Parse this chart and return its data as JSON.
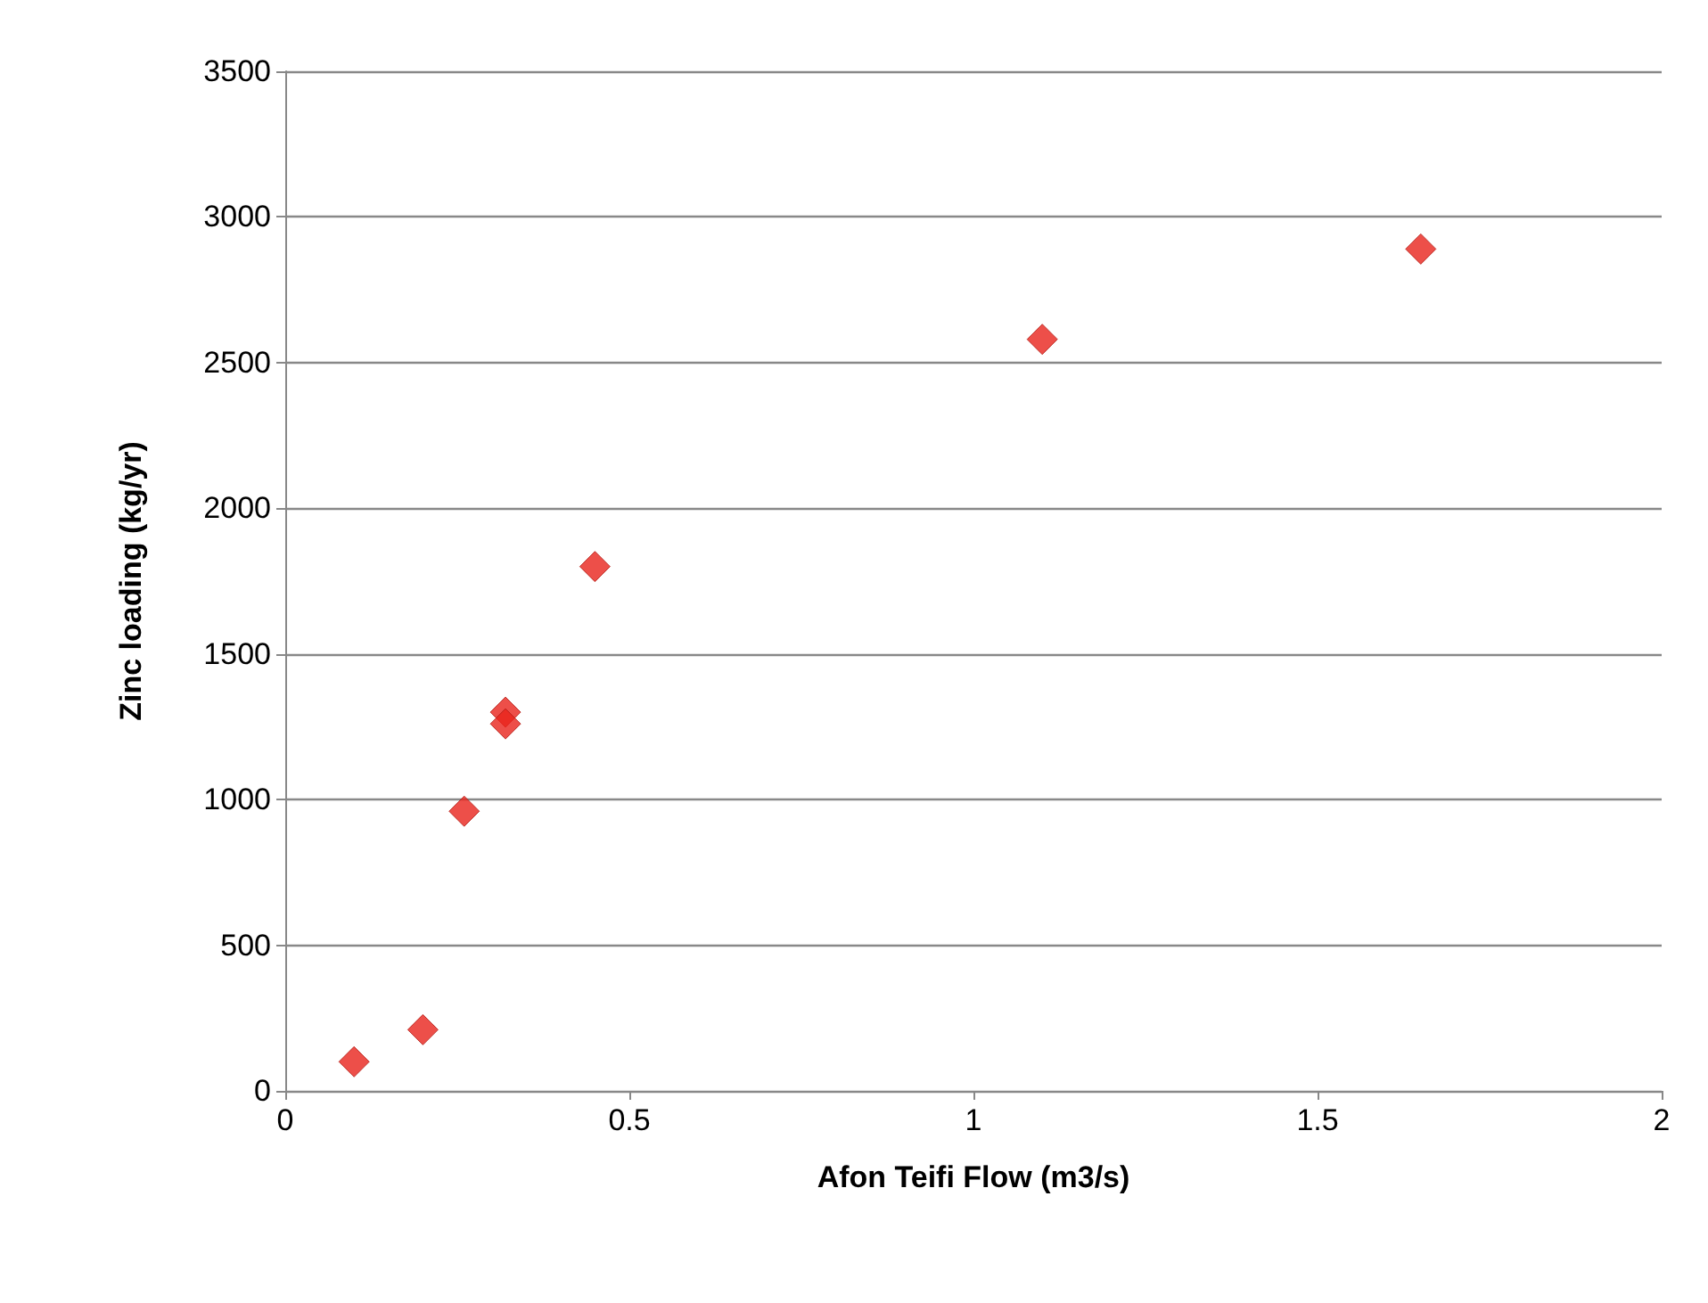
{
  "chart_data": {
    "type": "scatter",
    "xlabel": "Afon Teifi Flow (m3/s)",
    "ylabel": "Zinc loading (kg/yr)",
    "x": [
      0.1,
      0.2,
      0.26,
      0.32,
      0.32,
      0.45,
      1.1,
      1.65
    ],
    "series": [
      {
        "color": "#e8231c",
        "values": [
          100,
          210,
          960,
          1300,
          1260,
          1800,
          2580,
          2890
        ]
      }
    ],
    "xlim": [
      0,
      2
    ],
    "xticks": [
      0,
      0.5,
      1,
      1.5,
      2
    ],
    "ylim": [
      0,
      3500
    ],
    "yticks": [
      0,
      500,
      1000,
      1500,
      2000,
      2500,
      3000,
      3500
    ],
    "grid": "y",
    "marker": "diamond"
  }
}
